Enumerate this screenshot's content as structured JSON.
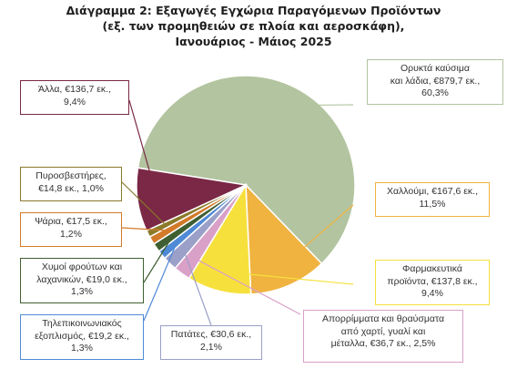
{
  "title_lines": [
    "Διάγραμμα 2: Εξαγωγές Εγχώρια Παραγόμενων Προϊόντων",
    "(εξ. των προμηθειών σε πλοία και αεροσκάφη),",
    "Ιανουάριος - Μάιος 2025"
  ],
  "chart_data": {
    "type": "pie",
    "title": "Διάγραμμα 2: Εξαγωγές Εγχώρια Παραγόμενων Προϊόντων (εξ. των προμηθειών σε πλοία και αεροσκάφη), Ιανουάριος - Μάιος 2025",
    "unit": "€ εκ.",
    "slices": [
      {
        "name": "Ορυκτά καύσιμα και λάδια",
        "value": 879.7,
        "percent": 60.3,
        "color": "#b3c4a0",
        "label_lines": [
          "Ορυκτά καύσιμα",
          "και λάδια, €879,7 εκ.,",
          "60,3%"
        ]
      },
      {
        "name": "Χαλλούμι",
        "value": 167.6,
        "percent": 11.5,
        "color": "#f0b340",
        "label_lines": [
          "Χαλλούμι, €167,6 εκ.,",
          "11,5%"
        ]
      },
      {
        "name": "Φαρμακευτικά προϊόντα",
        "value": 137.8,
        "percent": 9.4,
        "color": "#f6e13c",
        "label_lines": [
          "Φαρμακευτικά",
          "προϊόντα, €137,8 εκ.,",
          "9,4%"
        ]
      },
      {
        "name": "Απορρίμματα και θραύσματα από χαρτί, γυαλί και μέταλλα",
        "value": 36.7,
        "percent": 2.5,
        "color": "#d9a0c8",
        "label_lines": [
          "Απορρίμματα και θραύσματα",
          "από χαρτί, γυαλί και",
          "μέταλλα, €36,7 εκ., 2,5%"
        ]
      },
      {
        "name": "Πατάτες",
        "value": 30.6,
        "percent": 2.1,
        "color": "#9aa0c8",
        "label_lines": [
          "Πατάτες, €30,6 εκ.,",
          "2,1%"
        ]
      },
      {
        "name": "Τηλεπικοινωνιακός εξοπλισμός",
        "value": 19.2,
        "percent": 1.3,
        "color": "#4f8ad6",
        "label_lines": [
          "Τηλεπικοινωνιακός",
          "εξοπλισμός, €19,2 εκ.,",
          "1,3%"
        ]
      },
      {
        "name": "Χυμοί φρούτων και λαχανικών",
        "value": 19.0,
        "percent": 1.3,
        "color": "#3f5f32",
        "label_lines": [
          "Χυμοί φρούτων και",
          "λαχανικών, €19,0 εκ.,",
          "1,3%"
        ]
      },
      {
        "name": "Ψάρια",
        "value": 17.5,
        "percent": 1.2,
        "color": "#d27a2a",
        "label_lines": [
          "Ψάρια, €17,5 εκ.,",
          "1,2%"
        ]
      },
      {
        "name": "Πυροσβεστήρες",
        "value": 14.8,
        "percent": 1.0,
        "color": "#8a7a2a",
        "label_lines": [
          "Πυροσβεστήρες,",
          "€14,8 εκ., 1,0%"
        ]
      },
      {
        "name": "Άλλα",
        "value": 136.7,
        "percent": 9.4,
        "color": "#7a2845",
        "label_lines": [
          "Άλλα, €136,7 εκ.,",
          "9,4%"
        ]
      }
    ]
  }
}
